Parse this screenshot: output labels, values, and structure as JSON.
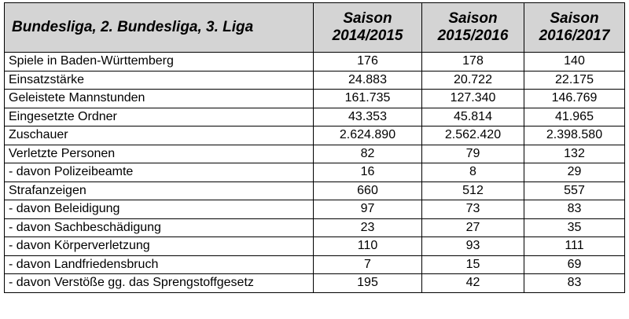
{
  "table": {
    "headers": [
      "Bundesliga, 2. Bundesliga, 3. Liga",
      "Saison\n2014/2015",
      "Saison\n2015/2016",
      "Saison\n2016/2017"
    ],
    "rows": [
      {
        "label": "Spiele in Baden-Württemberg",
        "values": [
          "176",
          "178",
          "140"
        ]
      },
      {
        "label": "Einsatzstärke",
        "values": [
          "24.883",
          "20.722",
          "22.175"
        ]
      },
      {
        "label": "Geleistete Mannstunden",
        "values": [
          "161.735",
          "127.340",
          "146.769"
        ]
      },
      {
        "label": "Eingesetzte Ordner",
        "values": [
          "43.353",
          "45.814",
          "41.965"
        ]
      },
      {
        "label": "Zuschauer",
        "values": [
          "2.624.890",
          "2.562.420",
          "2.398.580"
        ]
      },
      {
        "label": "Verletzte Personen",
        "values": [
          "82",
          "79",
          "132"
        ]
      },
      {
        "label": " - davon Polizeibeamte",
        "values": [
          "16",
          "8",
          "29"
        ]
      },
      {
        "label": "Strafanzeigen",
        "values": [
          "660",
          "512",
          "557"
        ]
      },
      {
        "label": " - davon Beleidigung",
        "values": [
          "97",
          "73",
          "83"
        ]
      },
      {
        "label": " - davon Sachbeschädigung",
        "values": [
          "23",
          "27",
          "35"
        ]
      },
      {
        "label": " - davon Körperverletzung",
        "values": [
          "110",
          "93",
          "111"
        ]
      },
      {
        "label": " - davon Landfriedensbruch",
        "values": [
          "7",
          "15",
          "69"
        ]
      },
      {
        "label": " - davon Verstöße gg. das Sprengstoffgesetz",
        "values": [
          "195",
          "42",
          "83"
        ]
      }
    ]
  }
}
